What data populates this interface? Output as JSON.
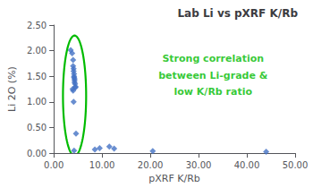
{
  "chart_data": {
    "type": "scatter",
    "title": "Lab Li vs pXRF K/Rb",
    "xlabel": "pXRF K/Rb",
    "ylabel": "Li 2O (%)",
    "x": [
      3.5,
      3.8,
      4.0,
      4.0,
      4.1,
      4.1,
      4.2,
      4.2,
      4.2,
      4.3,
      4.3,
      4.3,
      4.4,
      4.5,
      4.5,
      3.9,
      4.0,
      4.1,
      4.6,
      4.2,
      8.5,
      9.5,
      11.5,
      12.5,
      20.5,
      44.0
    ],
    "values": [
      2.01,
      1.95,
      1.82,
      1.7,
      1.65,
      1.6,
      1.55,
      1.5,
      1.48,
      1.45,
      1.42,
      1.38,
      1.35,
      1.3,
      1.28,
      1.25,
      1.22,
      1.0,
      0.38,
      0.05,
      0.07,
      0.1,
      0.13,
      0.09,
      0.04,
      0.03
    ],
    "color": "#4472C4",
    "marker": "diamond",
    "xlim": [
      0,
      50
    ],
    "ylim": [
      0,
      2.5
    ],
    "xticks": [
      {
        "value": 0,
        "label": "0.00"
      },
      {
        "value": 10,
        "label": "10.00"
      },
      {
        "value": 20,
        "label": "20.00"
      },
      {
        "value": 30,
        "label": "30.00"
      },
      {
        "value": 40,
        "label": "40.00"
      },
      {
        "value": 50,
        "label": "50.00"
      }
    ],
    "yticks": [
      {
        "value": 0,
        "label": "0.00"
      },
      {
        "value": 0.5,
        "label": "0.50"
      },
      {
        "value": 1,
        "label": "1.00"
      },
      {
        "value": 1.5,
        "label": "1.50"
      },
      {
        "value": 2,
        "label": "2.00"
      },
      {
        "value": 2.5,
        "label": "2.50"
      }
    ],
    "grid": false,
    "annotations": [
      {
        "text": "Strong correlation",
        "x": 33,
        "y": 1.85,
        "color": "#00BB00"
      },
      {
        "text": "between Li-grade &",
        "x": 33,
        "y": 1.52,
        "color": "#00BB00"
      },
      {
        "text": "low K/Rb ratio",
        "x": 33,
        "y": 1.19,
        "color": "#00BB00"
      }
    ],
    "ellipse": {
      "cx": 4.3,
      "cy": 1.12,
      "width": 4.8,
      "height": 2.35,
      "color": "#00BB00"
    }
  }
}
